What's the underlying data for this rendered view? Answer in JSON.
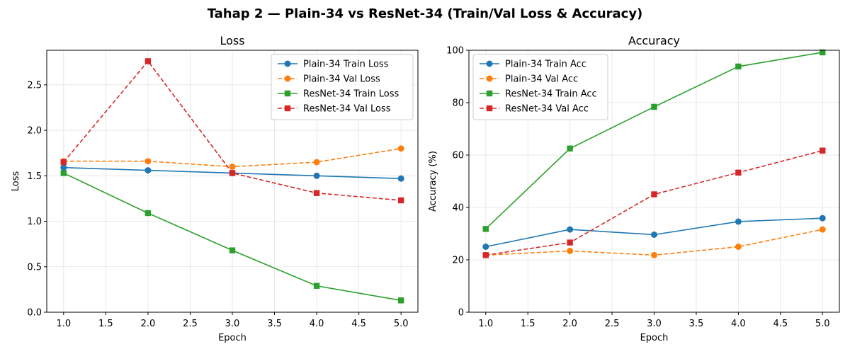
{
  "figure": {
    "title": "Tahap 2 — Plain-34 vs ResNet-34 (Train/Val Loss & Accuracy)"
  },
  "colors": {
    "blue": "#1f77b4",
    "orange": "#ff7f0e",
    "green": "#2ca02c",
    "red": "#d62728"
  },
  "chart_data": [
    {
      "type": "line",
      "title": "Loss",
      "xlabel": "Epoch",
      "ylabel": "Loss",
      "xlim": [
        0.8,
        5.2
      ],
      "ylim": [
        0,
        2.88
      ],
      "xticks": [
        1.0,
        1.5,
        2.0,
        2.5,
        3.0,
        3.5,
        4.0,
        4.5,
        5.0
      ],
      "xtick_labels": [
        "1.0",
        "1.5",
        "2.0",
        "2.5",
        "3.0",
        "3.5",
        "4.0",
        "4.5",
        "5.0"
      ],
      "yticks": [
        0.0,
        0.5,
        1.0,
        1.5,
        2.0,
        2.5
      ],
      "ytick_labels": [
        "0.0",
        "0.5",
        "1.0",
        "1.5",
        "2.0",
        "2.5"
      ],
      "grid": true,
      "legend_position": "top-right",
      "x": [
        1,
        2,
        3,
        4,
        5
      ],
      "series": [
        {
          "name": "Plain-34 Train Loss",
          "values": [
            1.59,
            1.56,
            1.53,
            1.5,
            1.47
          ],
          "color": "#1f77b4",
          "marker": "circle",
          "dashed": false
        },
        {
          "name": "Plain-34 Val Loss",
          "values": [
            1.66,
            1.66,
            1.6,
            1.65,
            1.8
          ],
          "color": "#ff7f0e",
          "marker": "circle",
          "dashed": true
        },
        {
          "name": "ResNet-34 Train Loss",
          "values": [
            1.53,
            1.09,
            0.68,
            0.29,
            0.13
          ],
          "color": "#2ca02c",
          "marker": "square",
          "dashed": false
        },
        {
          "name": "ResNet-34 Val Loss",
          "values": [
            1.65,
            2.76,
            1.53,
            1.31,
            1.23
          ],
          "color": "#d62728",
          "marker": "square",
          "dashed": true
        }
      ]
    },
    {
      "type": "line",
      "title": "Accuracy",
      "xlabel": "Epoch",
      "ylabel": "Accuracy (%)",
      "xlim": [
        0.8,
        5.2
      ],
      "ylim": [
        0,
        100
      ],
      "xticks": [
        1.0,
        1.5,
        2.0,
        2.5,
        3.0,
        3.5,
        4.0,
        4.5,
        5.0
      ],
      "xtick_labels": [
        "1.0",
        "1.5",
        "2.0",
        "2.5",
        "3.0",
        "3.5",
        "4.0",
        "4.5",
        "5.0"
      ],
      "yticks": [
        0,
        20,
        40,
        60,
        80,
        100
      ],
      "ytick_labels": [
        "0",
        "20",
        "40",
        "60",
        "80",
        "100"
      ],
      "grid": true,
      "legend_position": "top-left",
      "x": [
        1,
        2,
        3,
        4,
        5
      ],
      "series": [
        {
          "name": "Plain-34 Train Acc",
          "values": [
            25.0,
            31.6,
            29.6,
            34.6,
            35.9
          ],
          "color": "#1f77b4",
          "marker": "circle",
          "dashed": false
        },
        {
          "name": "Plain-34 Val Acc",
          "values": [
            21.8,
            23.4,
            21.8,
            25.0,
            31.6
          ],
          "color": "#ff7f0e",
          "marker": "circle",
          "dashed": true
        },
        {
          "name": "ResNet-34 Train Acc",
          "values": [
            31.8,
            62.5,
            78.4,
            93.8,
            99.2
          ],
          "color": "#2ca02c",
          "marker": "square",
          "dashed": false
        },
        {
          "name": "ResNet-34 Val Acc",
          "values": [
            21.8,
            26.6,
            45.0,
            53.3,
            61.7
          ],
          "color": "#d62728",
          "marker": "square",
          "dashed": true
        }
      ]
    }
  ]
}
